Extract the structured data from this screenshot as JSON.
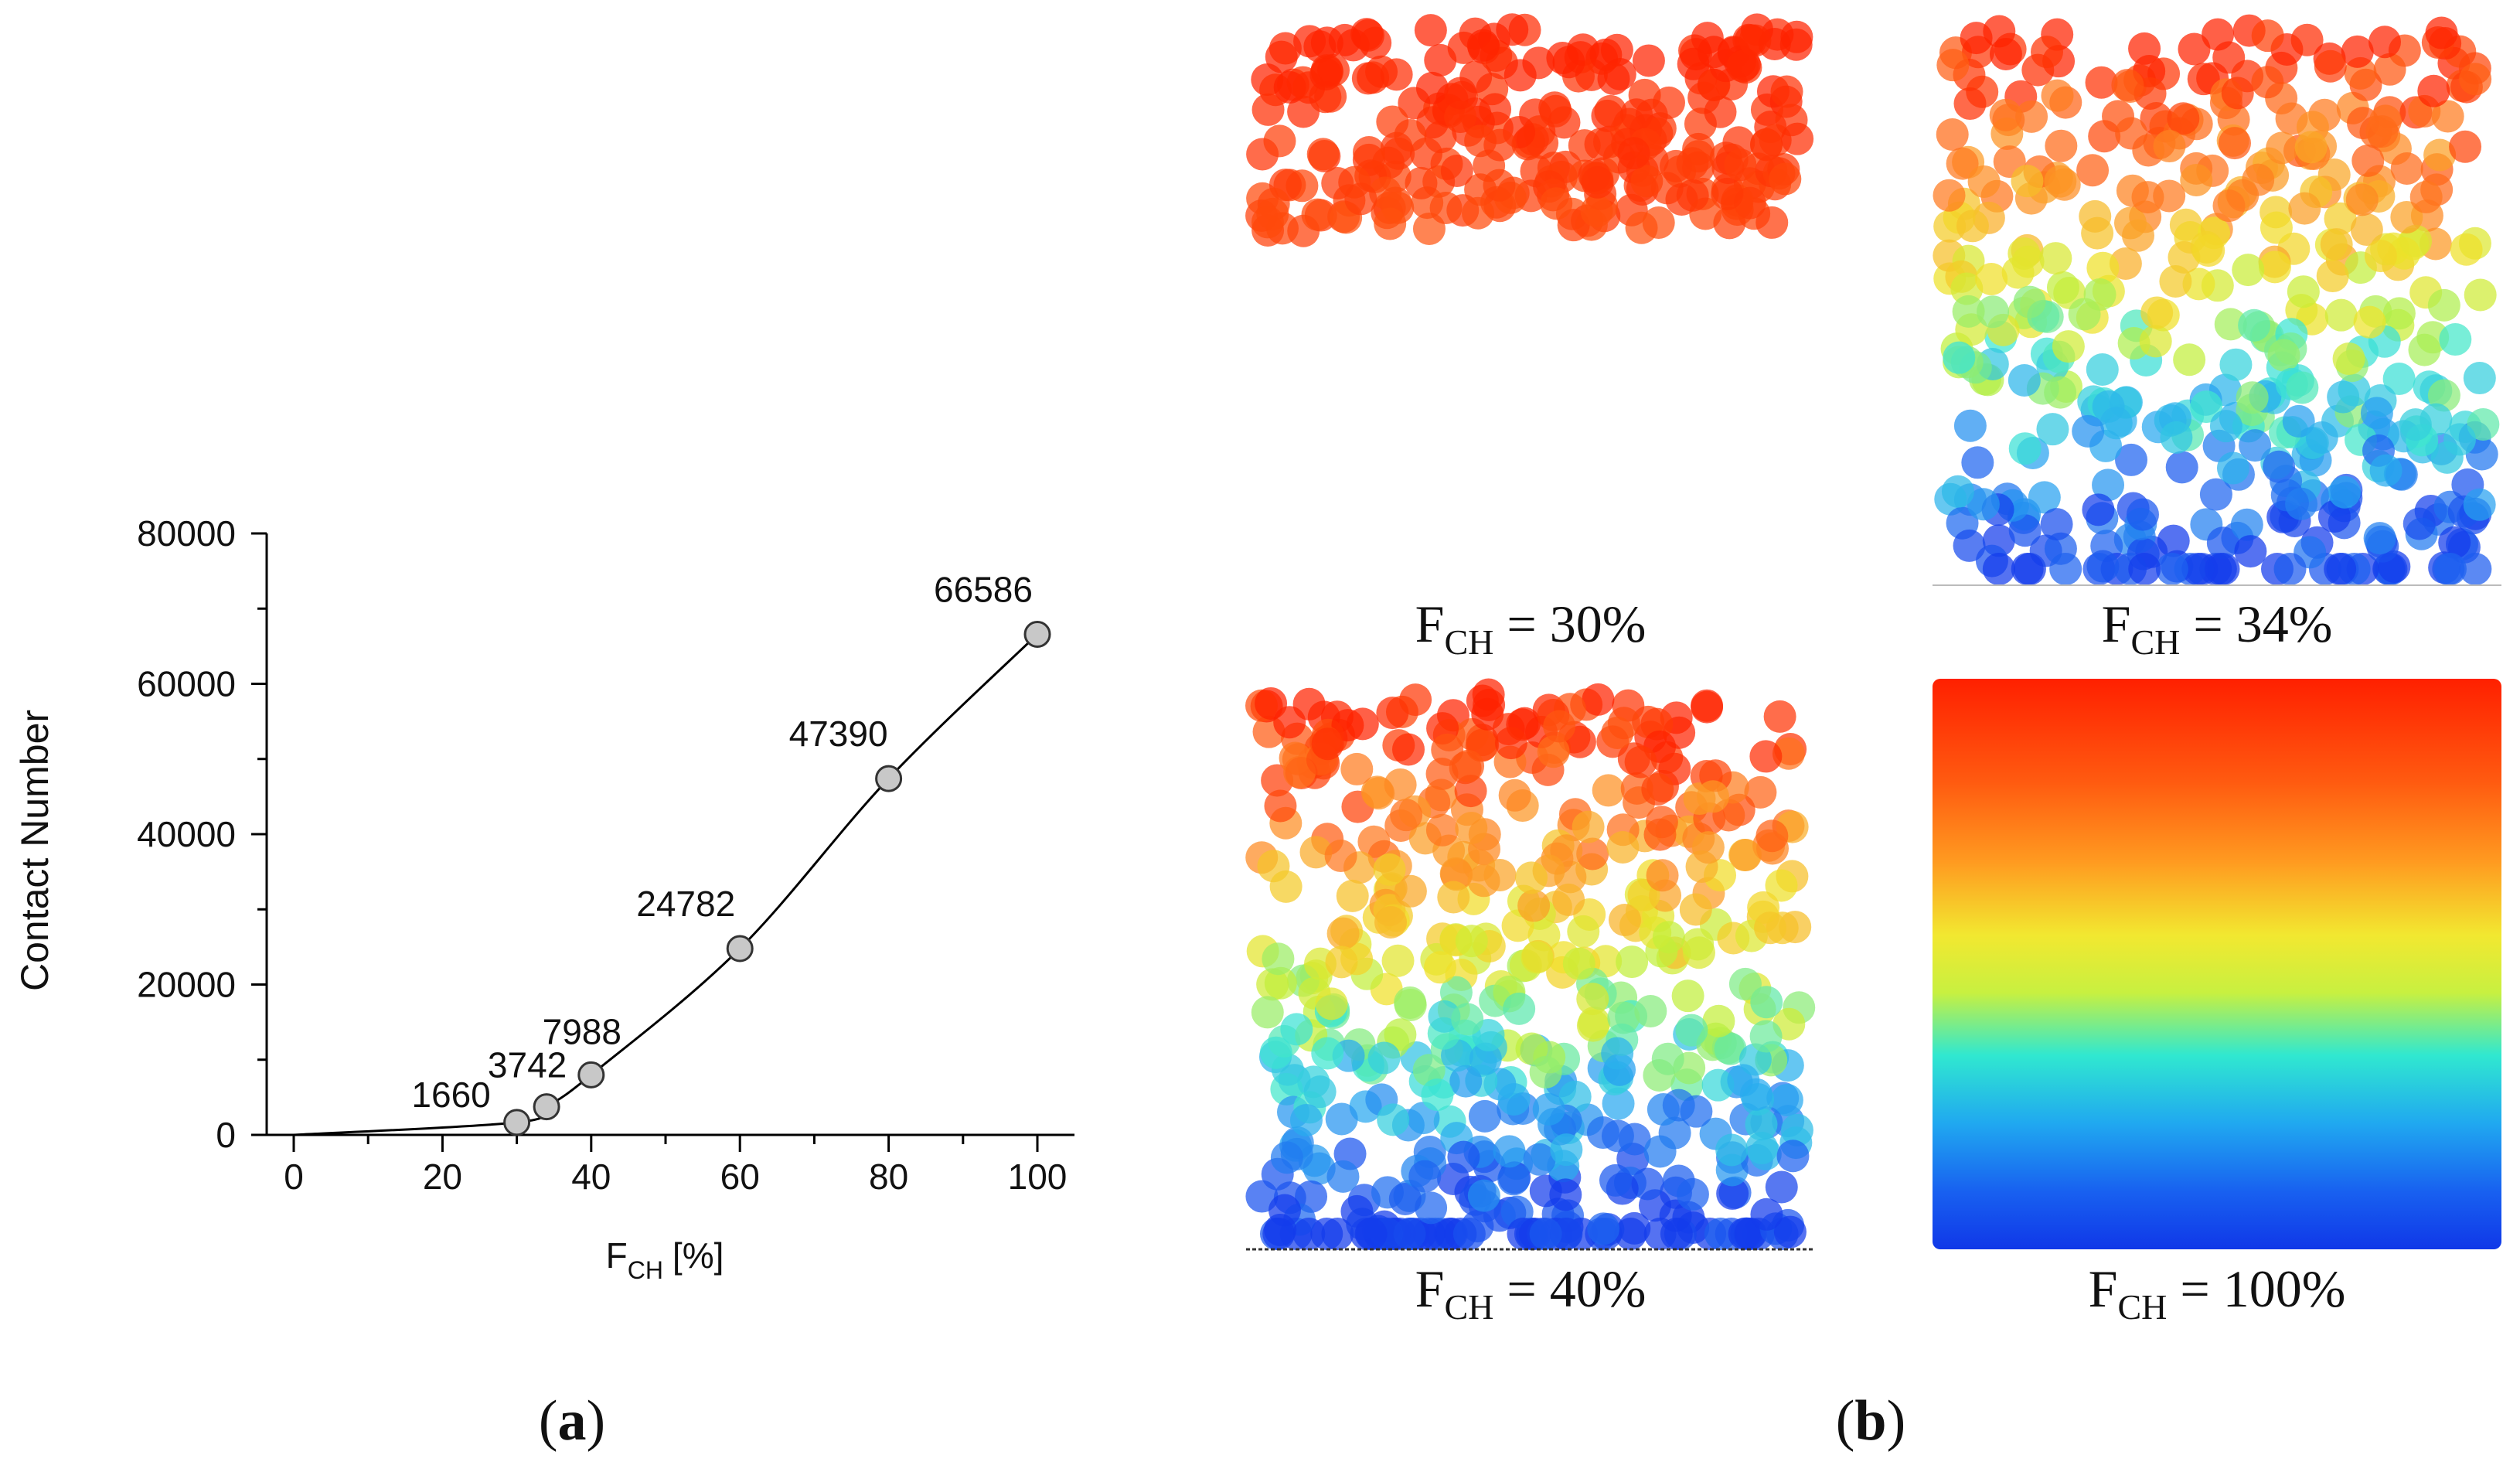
{
  "chart_data": {
    "type": "scatter",
    "x": [
      30,
      34,
      40,
      60,
      80,
      100
    ],
    "y": [
      1660,
      3742,
      7988,
      24782,
      47390,
      66586
    ],
    "point_labels": [
      "1660",
      "3742",
      "7988",
      "24782",
      "47390",
      "66586"
    ],
    "xlim": [
      0,
      100
    ],
    "ylim": [
      0,
      80000
    ],
    "xticks": [
      "0",
      "20",
      "40",
      "60",
      "80",
      "100"
    ],
    "yticks": [
      "0",
      "20000",
      "40000",
      "60000",
      "80000"
    ],
    "xlabel_main": "F",
    "xlabel_sub": "CH",
    "xlabel_unit": "[%]",
    "ylabel": "Contact Number",
    "trend_line": true,
    "panel_label": "a"
  },
  "panel_b": {
    "label": "b",
    "panels": [
      {
        "main": "F",
        "sub": "CH",
        "value": " = 30%",
        "fill_fraction": 0.3
      },
      {
        "main": "F",
        "sub": "CH",
        "value": " = 34%",
        "fill_fraction": 0.34
      },
      {
        "main": "F",
        "sub": "CH",
        "value": " = 40%",
        "fill_fraction": 0.4
      },
      {
        "main": "F",
        "sub": "CH",
        "value": " = 100%",
        "fill_fraction": 1.0
      }
    ]
  },
  "colors": {
    "point_fill": "#c8c8c8",
    "line": "#000000",
    "gradient": [
      "#ff2200",
      "#ff7a1a",
      "#f5d020",
      "#e8f020",
      "#30e0e0",
      "#2a90f0",
      "#1040e8"
    ]
  }
}
